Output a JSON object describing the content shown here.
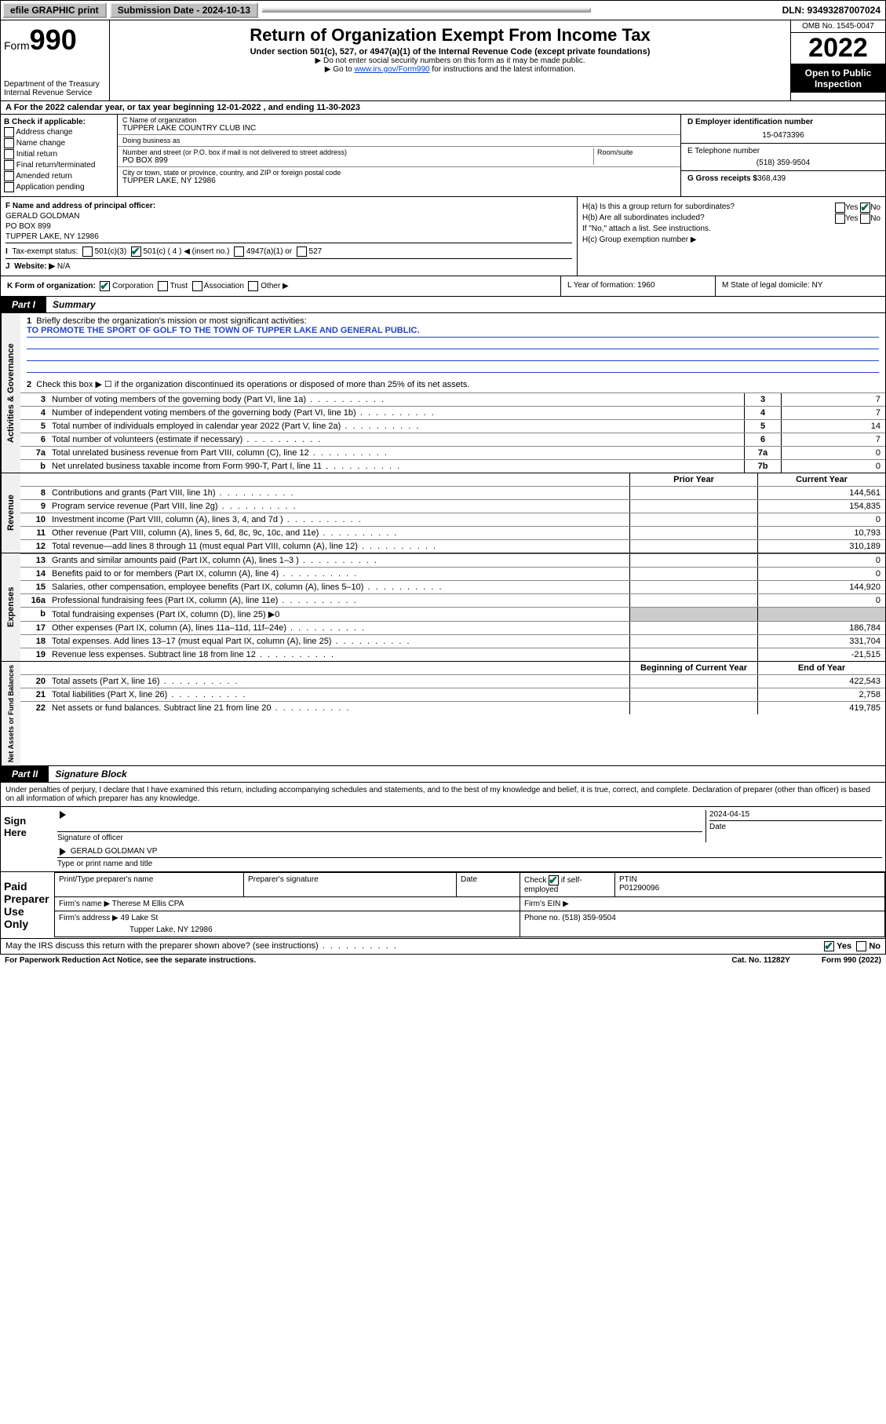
{
  "topbar": {
    "efile": "efile GRAPHIC print",
    "sub_label": "Submission Date - 2024-10-13",
    "dln": "DLN: 93493287007024"
  },
  "header": {
    "form_prefix": "Form",
    "form_num": "990",
    "dept": "Department of the Treasury\nInternal Revenue Service",
    "title": "Return of Organization Exempt From Income Tax",
    "sub": "Under section 501(c), 527, or 4947(a)(1) of the Internal Revenue Code (except private foundations)",
    "sub2a": "▶ Do not enter social security numbers on this form as it may be made public.",
    "sub2b_pre": "▶ Go to ",
    "sub2b_link": "www.irs.gov/Form990",
    "sub2b_post": " for instructions and the latest information.",
    "omb": "OMB No. 1545-0047",
    "year": "2022",
    "open": "Open to Public Inspection"
  },
  "row_a": "A For the 2022 calendar year, or tax year beginning 12-01-2022   , and ending 11-30-2023",
  "col_b": {
    "title": "B Check if applicable:",
    "items": [
      "Address change",
      "Name change",
      "Initial return",
      "Final return/terminated",
      "Amended return",
      "Application pending"
    ]
  },
  "col_c": {
    "name_label": "C Name of organization",
    "name": "TUPPER LAKE COUNTRY CLUB INC",
    "dba_label": "Doing business as",
    "dba": "",
    "addr_label": "Number and street (or P.O. box if mail is not delivered to street address)",
    "room_label": "Room/suite",
    "addr": "PO BOX 899",
    "city_label": "City or town, state or province, country, and ZIP or foreign postal code",
    "city": "TUPPER LAKE, NY  12986"
  },
  "col_d": {
    "d_label": "D Employer identification number",
    "d_val": "15-0473396",
    "e_label": "E Telephone number",
    "e_val": "(518) 359-9504",
    "g_label": "G Gross receipts $",
    "g_val": "368,439"
  },
  "section_f": {
    "f_label": "F Name and address of principal officer:",
    "f_name": "GERALD GOLDMAN",
    "f_addr1": "PO BOX 899",
    "f_addr2": "TUPPER LAKE, NY  12986",
    "i_label": "Tax-exempt status:",
    "i_501c3": "501(c)(3)",
    "i_501c": "501(c) ( 4 ) ◀ (insert no.)",
    "i_4947": "4947(a)(1) or",
    "i_527": "527",
    "j_label": "Website: ▶",
    "j_val": "N/A",
    "ha": "H(a)  Is this a group return for subordinates?",
    "hb": "H(b)  Are all subordinates included?",
    "hb2": "If \"No,\" attach a list. See instructions.",
    "hc": "H(c)  Group exemption number ▶",
    "yes": "Yes",
    "no": "No"
  },
  "row_k": {
    "k_label": "K Form of organization:",
    "opts": [
      "Corporation",
      "Trust",
      "Association",
      "Other ▶"
    ],
    "l": "L Year of formation: 1960",
    "m": "M State of legal domicile: NY"
  },
  "part1": {
    "tab": "Part I",
    "title": "Summary"
  },
  "summary": {
    "q1": "Briefly describe the organization's mission or most significant activities:",
    "q1_ans": "TO PROMOTE THE SPORT OF GOLF TO THE TOWN OF TUPPER LAKE AND GENERAL PUBLIC.",
    "q2": "Check this box ▶ ☐  if the organization discontinued its operations or disposed of more than 25% of its net assets.",
    "rows_gov": [
      {
        "n": "3",
        "d": "Number of voting members of the governing body (Part VI, line 1a)",
        "box": "3",
        "val": "7"
      },
      {
        "n": "4",
        "d": "Number of independent voting members of the governing body (Part VI, line 1b)",
        "box": "4",
        "val": "7"
      },
      {
        "n": "5",
        "d": "Total number of individuals employed in calendar year 2022 (Part V, line 2a)",
        "box": "5",
        "val": "14"
      },
      {
        "n": "6",
        "d": "Total number of volunteers (estimate if necessary)",
        "box": "6",
        "val": "7"
      },
      {
        "n": "7a",
        "d": "Total unrelated business revenue from Part VIII, column (C), line 12",
        "box": "7a",
        "val": "0"
      },
      {
        "n": "b",
        "d": "Net unrelated business taxable income from Form 990-T, Part I, line 11",
        "box": "7b",
        "val": "0"
      }
    ],
    "col_prior": "Prior Year",
    "col_current": "Current Year",
    "rows_rev": [
      {
        "n": "8",
        "d": "Contributions and grants (Part VIII, line 1h)",
        "p": "",
        "c": "144,561"
      },
      {
        "n": "9",
        "d": "Program service revenue (Part VIII, line 2g)",
        "p": "",
        "c": "154,835"
      },
      {
        "n": "10",
        "d": "Investment income (Part VIII, column (A), lines 3, 4, and 7d )",
        "p": "",
        "c": "0"
      },
      {
        "n": "11",
        "d": "Other revenue (Part VIII, column (A), lines 5, 6d, 8c, 9c, 10c, and 11e)",
        "p": "",
        "c": "10,793"
      },
      {
        "n": "12",
        "d": "Total revenue—add lines 8 through 11 (must equal Part VIII, column (A), line 12)",
        "p": "",
        "c": "310,189"
      }
    ],
    "rows_exp": [
      {
        "n": "13",
        "d": "Grants and similar amounts paid (Part IX, column (A), lines 1–3 )",
        "p": "",
        "c": "0"
      },
      {
        "n": "14",
        "d": "Benefits paid to or for members (Part IX, column (A), line 4)",
        "p": "",
        "c": "0"
      },
      {
        "n": "15",
        "d": "Salaries, other compensation, employee benefits (Part IX, column (A), lines 5–10)",
        "p": "",
        "c": "144,920"
      },
      {
        "n": "16a",
        "d": "Professional fundraising fees (Part IX, column (A), line 11e)",
        "p": "",
        "c": "0"
      },
      {
        "n": "b",
        "d": "Total fundraising expenses (Part IX, column (D), line 25) ▶0",
        "p": null,
        "c": null
      },
      {
        "n": "17",
        "d": "Other expenses (Part IX, column (A), lines 11a–11d, 11f–24e)",
        "p": "",
        "c": "186,784"
      },
      {
        "n": "18",
        "d": "Total expenses. Add lines 13–17 (must equal Part IX, column (A), line 25)",
        "p": "",
        "c": "331,704"
      },
      {
        "n": "19",
        "d": "Revenue less expenses. Subtract line 18 from line 12",
        "p": "",
        "c": "-21,515"
      }
    ],
    "col_begin": "Beginning of Current Year",
    "col_end": "End of Year",
    "rows_net": [
      {
        "n": "20",
        "d": "Total assets (Part X, line 16)",
        "p": "",
        "c": "422,543"
      },
      {
        "n": "21",
        "d": "Total liabilities (Part X, line 26)",
        "p": "",
        "c": "2,758"
      },
      {
        "n": "22",
        "d": "Net assets or fund balances. Subtract line 21 from line 20",
        "p": "",
        "c": "419,785"
      }
    ]
  },
  "vtabs": {
    "gov": "Activities & Governance",
    "rev": "Revenue",
    "exp": "Expenses",
    "net": "Net Assets or Fund Balances"
  },
  "part2": {
    "tab": "Part II",
    "title": "Signature Block",
    "decl": "Under penalties of perjury, I declare that I have examined this return, including accompanying schedules and statements, and to the best of my knowledge and belief, it is true, correct, and complete. Declaration of preparer (other than officer) is based on all information of which preparer has any knowledge."
  },
  "sign": {
    "side": "Sign Here",
    "sig_label": "Signature of officer",
    "date_label": "Date",
    "date": "2024-04-15",
    "name": "GERALD GOLDMAN VP",
    "name_label": "Type or print name and title"
  },
  "paid": {
    "side": "Paid Preparer Use Only",
    "h1": "Print/Type preparer's name",
    "h2": "Preparer's signature",
    "h3": "Date",
    "h4_check": "Check",
    "h4_if": "if self-employed",
    "h5": "PTIN",
    "ptin": "P01290096",
    "firm_name_label": "Firm's name    ▶",
    "firm_name": "Therese M Ellis CPA",
    "firm_ein_label": "Firm's EIN ▶",
    "firm_addr_label": "Firm's address ▶",
    "firm_addr1": "49 Lake St",
    "firm_addr2": "Tupper Lake, NY  12986",
    "firm_phone_label": "Phone no.",
    "firm_phone": "(518) 359-9504"
  },
  "footer": {
    "q": "May the IRS discuss this return with the preparer shown above? (see instructions)",
    "yes": "Yes",
    "no": "No",
    "pra": "For Paperwork Reduction Act Notice, see the separate instructions.",
    "cat": "Cat. No. 11282Y",
    "form": "Form 990 (2022)"
  }
}
